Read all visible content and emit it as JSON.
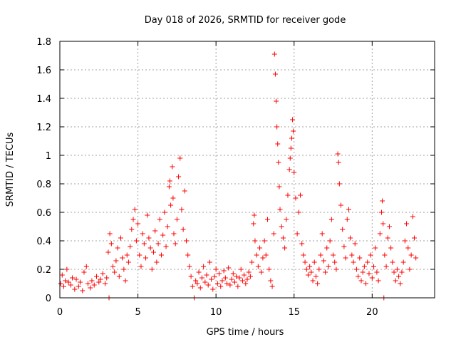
{
  "chart_data": {
    "type": "scatter",
    "title": "Day 018 of 2026, SRMTID for receiver gode",
    "xlabel": "GPS time / hours",
    "ylabel": "SRMTID / TECUs",
    "xlim": [
      0,
      24
    ],
    "ylim": [
      0,
      1.8
    ],
    "xticks": [
      0,
      5,
      10,
      15,
      20
    ],
    "yticks": [
      0,
      0.2,
      0.4,
      0.6,
      0.8,
      1,
      1.2,
      1.4,
      1.6,
      1.8
    ],
    "ytick_labels": [
      "0",
      "0.2",
      "0.4",
      "0.6",
      "0.8",
      "1",
      "1.2",
      "1.4",
      "1.6",
      "1.8"
    ],
    "grid": true,
    "marker": "+",
    "series": [
      {
        "name": "SRMTID",
        "color": "#ff0000",
        "points": [
          [
            0.05,
            0.1
          ],
          [
            0.15,
            0.16
          ],
          [
            0.25,
            0.08
          ],
          [
            0.35,
            0.12
          ],
          [
            0.45,
            0.2
          ],
          [
            0.55,
            0.11
          ],
          [
            0.7,
            0.09
          ],
          [
            0.8,
            0.14
          ],
          [
            0.95,
            0.06
          ],
          [
            1.05,
            0.13
          ],
          [
            1.2,
            0.08
          ],
          [
            1.3,
            0.11
          ],
          [
            1.45,
            0.05
          ],
          [
            1.55,
            0.18
          ],
          [
            1.7,
            0.22
          ],
          [
            1.8,
            0.1
          ],
          [
            1.95,
            0.07
          ],
          [
            2.05,
            0.12
          ],
          [
            2.2,
            0.09
          ],
          [
            2.35,
            0.15
          ],
          [
            2.5,
            0.11
          ],
          [
            2.6,
            0.13
          ],
          [
            2.75,
            0.17
          ],
          [
            2.9,
            0.1
          ],
          [
            3.0,
            0.14
          ],
          [
            3.1,
            0.32
          ],
          [
            3.15,
            0.0
          ],
          [
            3.2,
            0.45
          ],
          [
            3.3,
            0.38
          ],
          [
            3.4,
            0.22
          ],
          [
            3.5,
            0.18
          ],
          [
            3.6,
            0.26
          ],
          [
            3.7,
            0.35
          ],
          [
            3.8,
            0.15
          ],
          [
            3.9,
            0.42
          ],
          [
            4.0,
            0.28
          ],
          [
            4.1,
            0.2
          ],
          [
            4.2,
            0.12
          ],
          [
            4.3,
            0.3
          ],
          [
            4.4,
            0.25
          ],
          [
            4.5,
            0.36
          ],
          [
            4.6,
            0.48
          ],
          [
            4.7,
            0.55
          ],
          [
            4.8,
            0.62
          ],
          [
            4.9,
            0.4
          ],
          [
            5.0,
            0.52
          ],
          [
            5.1,
            0.3
          ],
          [
            5.2,
            0.22
          ],
          [
            5.3,
            0.45
          ],
          [
            5.4,
            0.38
          ],
          [
            5.5,
            0.28
          ],
          [
            5.6,
            0.58
          ],
          [
            5.7,
            0.42
          ],
          [
            5.8,
            0.35
          ],
          [
            5.9,
            0.2
          ],
          [
            6.0,
            0.32
          ],
          [
            6.1,
            0.47
          ],
          [
            6.2,
            0.25
          ],
          [
            6.3,
            0.38
          ],
          [
            6.4,
            0.55
          ],
          [
            6.5,
            0.3
          ],
          [
            6.6,
            0.44
          ],
          [
            6.7,
            0.6
          ],
          [
            6.8,
            0.36
          ],
          [
            6.9,
            0.5
          ],
          [
            7.0,
            0.78
          ],
          [
            7.05,
            0.82
          ],
          [
            7.1,
            0.65
          ],
          [
            7.2,
            0.92
          ],
          [
            7.25,
            0.7
          ],
          [
            7.3,
            0.45
          ],
          [
            7.4,
            0.38
          ],
          [
            7.5,
            0.55
          ],
          [
            7.6,
            0.85
          ],
          [
            7.7,
            0.98
          ],
          [
            7.8,
            0.62
          ],
          [
            7.9,
            0.48
          ],
          [
            8.0,
            0.75
          ],
          [
            8.1,
            0.4
          ],
          [
            8.2,
            0.3
          ],
          [
            8.3,
            0.22
          ],
          [
            8.4,
            0.15
          ],
          [
            8.5,
            0.08
          ],
          [
            8.6,
            0.0
          ],
          [
            8.7,
            0.12
          ],
          [
            8.8,
            0.1
          ],
          [
            8.9,
            0.18
          ],
          [
            9.0,
            0.07
          ],
          [
            9.1,
            0.14
          ],
          [
            9.2,
            0.22
          ],
          [
            9.3,
            0.11
          ],
          [
            9.4,
            0.16
          ],
          [
            9.5,
            0.09
          ],
          [
            9.6,
            0.25
          ],
          [
            9.7,
            0.13
          ],
          [
            9.8,
            0.06
          ],
          [
            9.9,
            0.15
          ],
          [
            10.0,
            0.2
          ],
          [
            10.1,
            0.1
          ],
          [
            10.2,
            0.17
          ],
          [
            10.3,
            0.08
          ],
          [
            10.4,
            0.12
          ],
          [
            10.5,
            0.19
          ],
          [
            10.6,
            0.14
          ],
          [
            10.7,
            0.1
          ],
          [
            10.8,
            0.21
          ],
          [
            10.9,
            0.09
          ],
          [
            11.0,
            0.13
          ],
          [
            11.1,
            0.17
          ],
          [
            11.2,
            0.11
          ],
          [
            11.3,
            0.15
          ],
          [
            11.4,
            0.08
          ],
          [
            11.5,
            0.14
          ],
          [
            11.6,
            0.2
          ],
          [
            11.7,
            0.12
          ],
          [
            11.8,
            0.16
          ],
          [
            11.9,
            0.1
          ],
          [
            12.0,
            0.13
          ],
          [
            12.1,
            0.18
          ],
          [
            12.2,
            0.15
          ],
          [
            12.3,
            0.25
          ],
          [
            12.4,
            0.52
          ],
          [
            12.45,
            0.58
          ],
          [
            12.5,
            0.4
          ],
          [
            12.6,
            0.3
          ],
          [
            12.7,
            0.22
          ],
          [
            12.8,
            0.35
          ],
          [
            12.9,
            0.18
          ],
          [
            13.0,
            0.28
          ],
          [
            13.1,
            0.4
          ],
          [
            13.2,
            0.3
          ],
          [
            13.3,
            0.55
          ],
          [
            13.4,
            0.2
          ],
          [
            13.5,
            0.12
          ],
          [
            13.6,
            0.08
          ],
          [
            13.7,
            0.45
          ],
          [
            13.75,
            1.71
          ],
          [
            13.8,
            1.57
          ],
          [
            13.85,
            1.38
          ],
          [
            13.9,
            1.2
          ],
          [
            13.95,
            1.08
          ],
          [
            14.0,
            0.95
          ],
          [
            14.05,
            0.78
          ],
          [
            14.1,
            0.62
          ],
          [
            14.2,
            0.5
          ],
          [
            14.3,
            0.42
          ],
          [
            14.4,
            0.35
          ],
          [
            14.5,
            0.55
          ],
          [
            14.6,
            0.72
          ],
          [
            14.7,
            0.9
          ],
          [
            14.75,
            0.98
          ],
          [
            14.8,
            1.05
          ],
          [
            14.85,
            1.12
          ],
          [
            14.9,
            1.25
          ],
          [
            14.95,
            1.17
          ],
          [
            15.0,
            0.88
          ],
          [
            15.1,
            0.7
          ],
          [
            15.2,
            0.45
          ],
          [
            15.3,
            0.6
          ],
          [
            15.4,
            0.72
          ],
          [
            15.5,
            0.38
          ],
          [
            15.6,
            0.3
          ],
          [
            15.7,
            0.25
          ],
          [
            15.8,
            0.2
          ],
          [
            15.9,
            0.16
          ],
          [
            16.0,
            0.22
          ],
          [
            16.1,
            0.18
          ],
          [
            16.2,
            0.12
          ],
          [
            16.3,
            0.25
          ],
          [
            16.4,
            0.15
          ],
          [
            16.5,
            0.1
          ],
          [
            16.6,
            0.2
          ],
          [
            16.7,
            0.3
          ],
          [
            16.8,
            0.45
          ],
          [
            16.9,
            0.26
          ],
          [
            17.0,
            0.18
          ],
          [
            17.1,
            0.35
          ],
          [
            17.2,
            0.22
          ],
          [
            17.3,
            0.4
          ],
          [
            17.4,
            0.55
          ],
          [
            17.5,
            0.3
          ],
          [
            17.6,
            0.25
          ],
          [
            17.7,
            0.2
          ],
          [
            17.8,
            1.01
          ],
          [
            17.85,
            0.95
          ],
          [
            17.9,
            0.8
          ],
          [
            18.0,
            0.65
          ],
          [
            18.1,
            0.48
          ],
          [
            18.2,
            0.36
          ],
          [
            18.3,
            0.28
          ],
          [
            18.4,
            0.55
          ],
          [
            18.5,
            0.62
          ],
          [
            18.6,
            0.42
          ],
          [
            18.7,
            0.3
          ],
          [
            18.8,
            0.25
          ],
          [
            18.9,
            0.38
          ],
          [
            19.0,
            0.2
          ],
          [
            19.1,
            0.15
          ],
          [
            19.2,
            0.28
          ],
          [
            19.3,
            0.12
          ],
          [
            19.4,
            0.18
          ],
          [
            19.5,
            0.22
          ],
          [
            19.6,
            0.1
          ],
          [
            19.7,
            0.25
          ],
          [
            19.8,
            0.17
          ],
          [
            19.9,
            0.3
          ],
          [
            20.0,
            0.14
          ],
          [
            20.1,
            0.22
          ],
          [
            20.2,
            0.35
          ],
          [
            20.3,
            0.18
          ],
          [
            20.4,
            0.12
          ],
          [
            20.5,
            0.45
          ],
          [
            20.6,
            0.6
          ],
          [
            20.65,
            0.68
          ],
          [
            20.7,
            0.52
          ],
          [
            20.75,
            0.0
          ],
          [
            20.8,
            0.3
          ],
          [
            20.9,
            0.22
          ],
          [
            21.0,
            0.42
          ],
          [
            21.1,
            0.5
          ],
          [
            21.2,
            0.35
          ],
          [
            21.3,
            0.25
          ],
          [
            21.4,
            0.18
          ],
          [
            21.5,
            0.12
          ],
          [
            21.6,
            0.2
          ],
          [
            21.7,
            0.15
          ],
          [
            21.8,
            0.1
          ],
          [
            21.9,
            0.18
          ],
          [
            22.0,
            0.25
          ],
          [
            22.1,
            0.4
          ],
          [
            22.2,
            0.52
          ],
          [
            22.3,
            0.35
          ],
          [
            22.4,
            0.2
          ],
          [
            22.5,
            0.3
          ],
          [
            22.6,
            0.57
          ],
          [
            22.7,
            0.42
          ],
          [
            22.8,
            0.28
          ]
        ]
      }
    ]
  }
}
